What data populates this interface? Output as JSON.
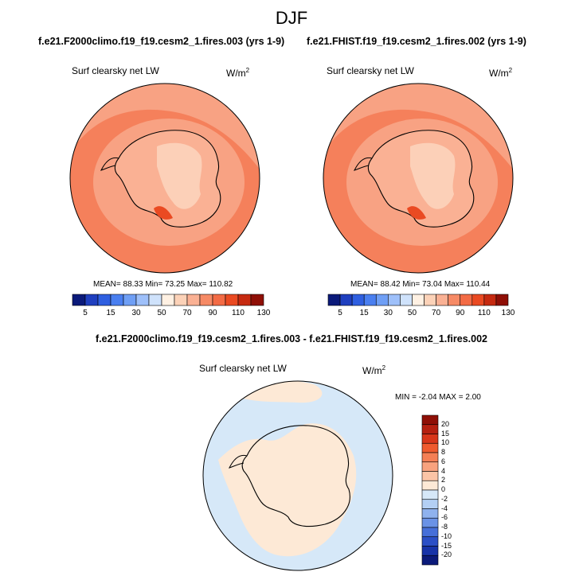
{
  "page": {
    "title": "DJF"
  },
  "chart_data": [
    {
      "type": "heatmap",
      "projection": "south-polar-stereographic",
      "title": "f.e21.F2000climo.f19_f19.cesm2_1.fires.003 (yrs 1-9)",
      "variable_label": "Surf clearsky net LW",
      "units": "W/m",
      "units_superscript": "2",
      "stats_text": "MEAN= 88.33  Min= 73.25  Max= 110.82",
      "mean": 88.33,
      "min": 73.25,
      "max": 110.82,
      "colorbar": {
        "orientation": "horizontal",
        "levels": [
          "5",
          "15",
          "30",
          "50",
          "70",
          "90",
          "110",
          "130"
        ],
        "colors": [
          "#0b1a7a",
          "#1f3fbf",
          "#2f5fe0",
          "#4a7ff0",
          "#6f9ff5",
          "#9ec0fa",
          "#cfe2fb",
          "#fff1e3",
          "#fcd2b8",
          "#fab194",
          "#f68a65",
          "#f36b45",
          "#ea4a22",
          "#c62a10",
          "#8f0f06"
        ]
      }
    },
    {
      "type": "heatmap",
      "projection": "south-polar-stereographic",
      "title": "f.e21.FHIST.f19_f19.cesm2_1.fires.002 (yrs 1-9)",
      "variable_label": "Surf clearsky net LW",
      "units": "W/m",
      "units_superscript": "2",
      "stats_text": "MEAN= 88.42  Min= 73.04  Max= 110.44",
      "mean": 88.42,
      "min": 73.04,
      "max": 110.44,
      "colorbar": {
        "orientation": "horizontal",
        "levels": [
          "5",
          "15",
          "30",
          "50",
          "70",
          "90",
          "110",
          "130"
        ],
        "colors": [
          "#0b1a7a",
          "#1f3fbf",
          "#2f5fe0",
          "#4a7ff0",
          "#6f9ff5",
          "#9ec0fa",
          "#cfe2fb",
          "#fff1e3",
          "#fcd2b8",
          "#fab194",
          "#f68a65",
          "#f36b45",
          "#ea4a22",
          "#c62a10",
          "#8f0f06"
        ]
      }
    },
    {
      "type": "heatmap",
      "projection": "south-polar-stereographic",
      "title": "f.e21.F2000climo.f19_f19.cesm2_1.fires.003 - f.e21.FHIST.f19_f19.cesm2_1.fires.002",
      "variable_label": "Surf clearsky net LW",
      "units": "W/m",
      "units_superscript": "2",
      "stats_text": "MIN =  -2.04 MAX =   2.00",
      "min": -2.04,
      "max": 2.0,
      "colorbar": {
        "orientation": "vertical",
        "levels": [
          "20",
          "15",
          "10",
          "8",
          "6",
          "4",
          "2",
          "0",
          "-2",
          "-4",
          "-6",
          "-8",
          "-10",
          "-15",
          "-20"
        ],
        "colors": [
          "#8f0f06",
          "#b52010",
          "#d8361a",
          "#ef5a2e",
          "#f47f55",
          "#f8a27e",
          "#fbc4a6",
          "#fde9d6",
          "#d6e8f8",
          "#b3cff4",
          "#8fb2ee",
          "#6a92e6",
          "#466fd9",
          "#2b4fc6",
          "#1733a8",
          "#0b1a7a"
        ]
      }
    }
  ],
  "colors": {
    "map_base_warm": "#f8a283",
    "map_ocean_mid": "#f47a55",
    "map_inner_light": "#fcd0b8",
    "map_high": "#ea4a22",
    "diff_blue": "#d6e8f8",
    "diff_peach": "#fde9d6"
  }
}
